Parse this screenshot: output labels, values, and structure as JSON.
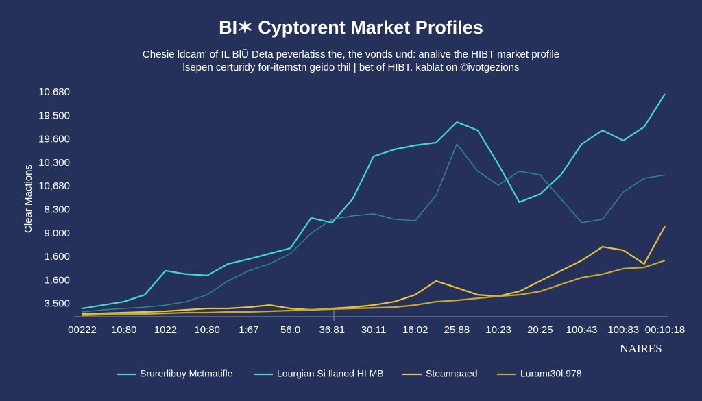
{
  "chart_data": {
    "type": "line",
    "title": "BI✶ Cyptorent Market Profiles",
    "subtitle": [
      "Chesie ldcam' of IL BlÜ Deta peverlatiss the, the vonds und: analive the HIBT market profile",
      "lsepen certuridy for-itemstn geido thil | bet of HIBT. kablat on ©ivotgezions"
    ],
    "y_axis_label": "Clear Mactions",
    "y_axis_labels": [
      "10.680",
      "19.500",
      "19.600",
      "10.300",
      "10,680",
      "8.300",
      "9.000",
      "1.600",
      "1.600",
      "3.500"
    ],
    "ylim": [
      0,
      100
    ],
    "categories": [
      "00222",
      null,
      "10:80",
      null,
      "1022",
      null,
      "10:80",
      null,
      "1:67",
      null,
      "56:0",
      null,
      "36:81",
      null,
      "30:11",
      null,
      "16:02",
      null,
      "25:88",
      null,
      "10:23",
      null,
      "20:25",
      null,
      "100:43",
      null,
      "100:83",
      null,
      "00:10:18"
    ],
    "series": [
      {
        "name": "Srurerlibuy Mctmatifle",
        "color": "#3fd8d4",
        "values": [
          3.6,
          5.1,
          6.6,
          9.6,
          20.2,
          18.7,
          18.1,
          23.2,
          25.3,
          27.7,
          30.1,
          43.4,
          41.3,
          51.8,
          70.5,
          73.5,
          75.3,
          76.5,
          85.5,
          81.9,
          66.9,
          50.3,
          53.9,
          62.3,
          75.9,
          81.9,
          77.4,
          83.4,
          97.9
        ]
      },
      {
        "name": "Lourgian Si Ilanod HI MB",
        "color": "#2f8a86",
        "values": [
          2.1,
          3.0,
          3.6,
          4.2,
          5.1,
          6.6,
          9.6,
          15.7,
          20.2,
          23.2,
          27.7,
          36.7,
          42.8,
          44.3,
          45.2,
          42.8,
          42.2,
          53.3,
          75.9,
          63.9,
          57.8,
          63.9,
          62.3,
          51.8,
          41.3,
          42.8,
          54.8,
          60.8,
          62.3
        ]
      },
      {
        "name": "Steannaaed",
        "color": "#e4c43c",
        "values": [
          1.2,
          1.5,
          1.8,
          2.1,
          2.4,
          3.0,
          3.6,
          3.6,
          4.2,
          5.1,
          3.6,
          3.0,
          3.6,
          4.2,
          5.1,
          6.6,
          9.6,
          15.7,
          12.7,
          9.6,
          9.0,
          11.1,
          15.7,
          20.2,
          24.7,
          30.7,
          29.2,
          23.2,
          39.8
        ]
      },
      {
        "name": "Luramı30l.978",
        "color": "#c9a92e",
        "values": [
          0.6,
          0.9,
          1.2,
          1.2,
          1.5,
          1.8,
          1.8,
          2.1,
          2.1,
          2.4,
          2.7,
          3.0,
          3.3,
          3.6,
          3.9,
          4.2,
          5.1,
          6.6,
          7.2,
          8.1,
          9.0,
          9.6,
          11.1,
          14.2,
          17.2,
          18.7,
          21.1,
          21.7,
          24.7
        ]
      }
    ],
    "logo": "NAIRES"
  }
}
